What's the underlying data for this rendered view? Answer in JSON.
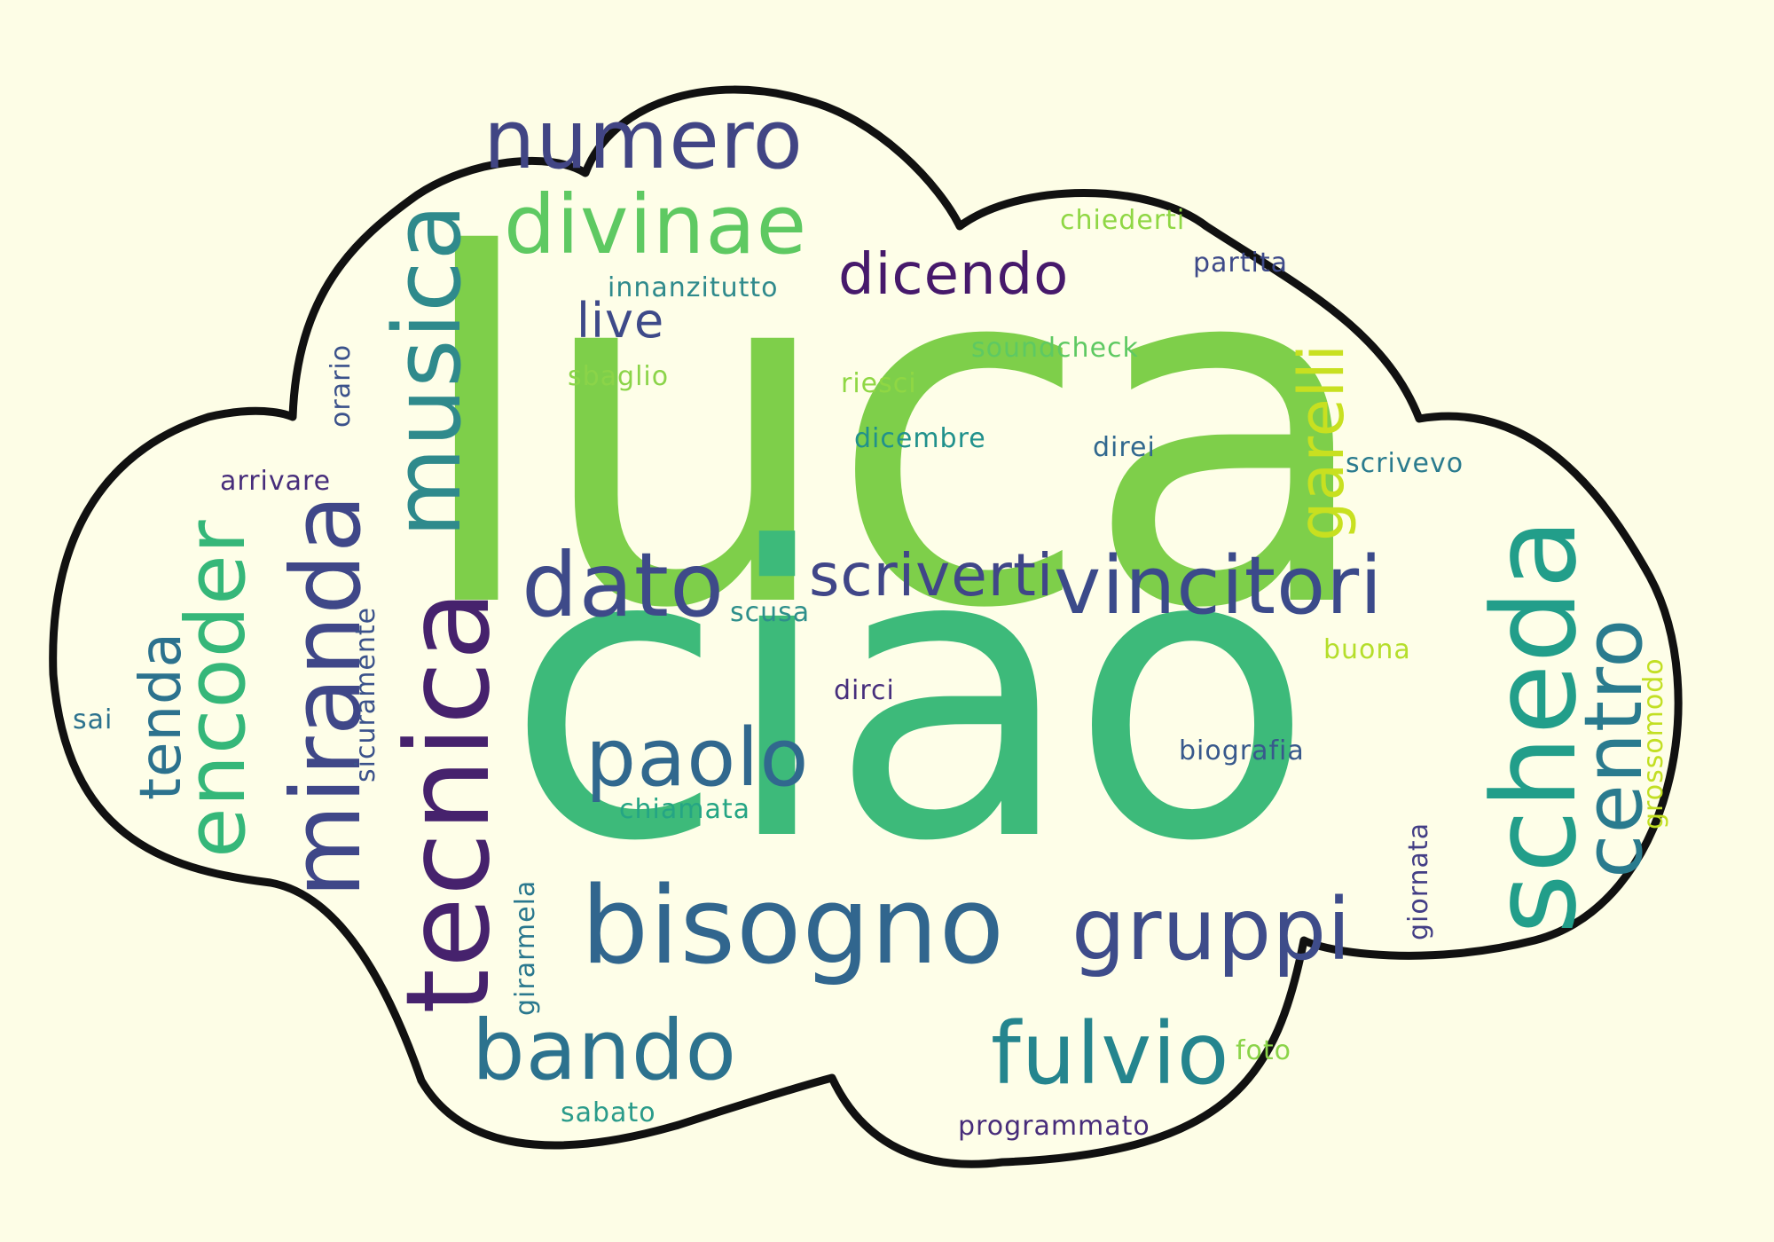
{
  "cloud": {
    "background_color": "#fdfde6",
    "fill_color": "#fefee8",
    "outline_color": "#111111"
  },
  "words": {
    "luca": "luca",
    "ciao": "ciao",
    "numero": "numero",
    "divinae": "divinae",
    "dicendo": "dicendo",
    "live": "live",
    "innanzitutto": "innanzitutto",
    "sbaglio": "sbaglio",
    "musica": "musica",
    "orario": "orario",
    "arrivare": "arrivare",
    "chiederti": "chiederti",
    "partita": "partita",
    "soundcheck": "soundcheck",
    "riesci": "riesci",
    "dicembre": "dicembre",
    "direi": "direi",
    "garelli": "garelli",
    "scrivevo": "scrivevo",
    "dato": "dato",
    "scriverti": "scriverti",
    "vincitori": "vincitori",
    "scusa": "scusa",
    "buona": "buona",
    "scheda": "scheda",
    "centro": "centro",
    "grossomodo": "grossomodo",
    "tecnica": "tecnica",
    "miranda": "miranda",
    "encoder": "encoder",
    "tenda": "tenda",
    "sicuramente": "sicuramente",
    "sai": "sai",
    "dirci": "dirci",
    "paolo": "paolo",
    "chiamata": "chiamata",
    "biografia": "biografia",
    "bisogno": "bisogno",
    "gruppi": "gruppi",
    "giornata": "giornata",
    "girarmela": "girarmela",
    "bando": "bando",
    "fulvio": "fulvio",
    "foto": "foto",
    "sabato": "sabato",
    "programmato": "programmato"
  },
  "word_colors": {
    "luca": "#7ecf4a",
    "ciao": "#3dba7a",
    "numero": "#414584",
    "divinae": "#5ec962",
    "dicendo": "#46196b",
    "live": "#3e4a89",
    "innanzitutto": "#2f8a8c",
    "sbaglio": "#8bd449",
    "musica": "#2f8a8c",
    "orario": "#3b528b",
    "arrivare": "#472d7b",
    "chiederti": "#8fd744",
    "partita": "#3e4a89",
    "soundcheck": "#5ec962",
    "riesci": "#8fd744",
    "dicembre": "#21918c",
    "direi": "#31688e",
    "garelli": "#c8e020",
    "scrivevo": "#2a7b8e",
    "dato": "#3e4a89",
    "scriverti": "#404688",
    "vincitori": "#3b4a8a",
    "scusa": "#2e8f8b",
    "buona": "#b5de2b",
    "scheda": "#229e8a",
    "centro": "#2a7b8e",
    "grossomodo": "#c2df23",
    "tecnica": "#46226d",
    "miranda": "#3f4788",
    "encoder": "#35b779",
    "tenda": "#2c728e",
    "sicuramente": "#3b528b",
    "sai": "#2c728e",
    "dirci": "#472f7d",
    "paolo": "#31688e",
    "chiamata": "#25a584",
    "biografia": "#38598c",
    "bisogno": "#31668e",
    "gruppi": "#3e4c8a",
    "giornata": "#433e85",
    "girarmela": "#2a788e",
    "bando": "#2c728e",
    "fulvio": "#25858e",
    "foto": "#8bd449",
    "sabato": "#2a9b8a",
    "programmato": "#472c7a"
  }
}
